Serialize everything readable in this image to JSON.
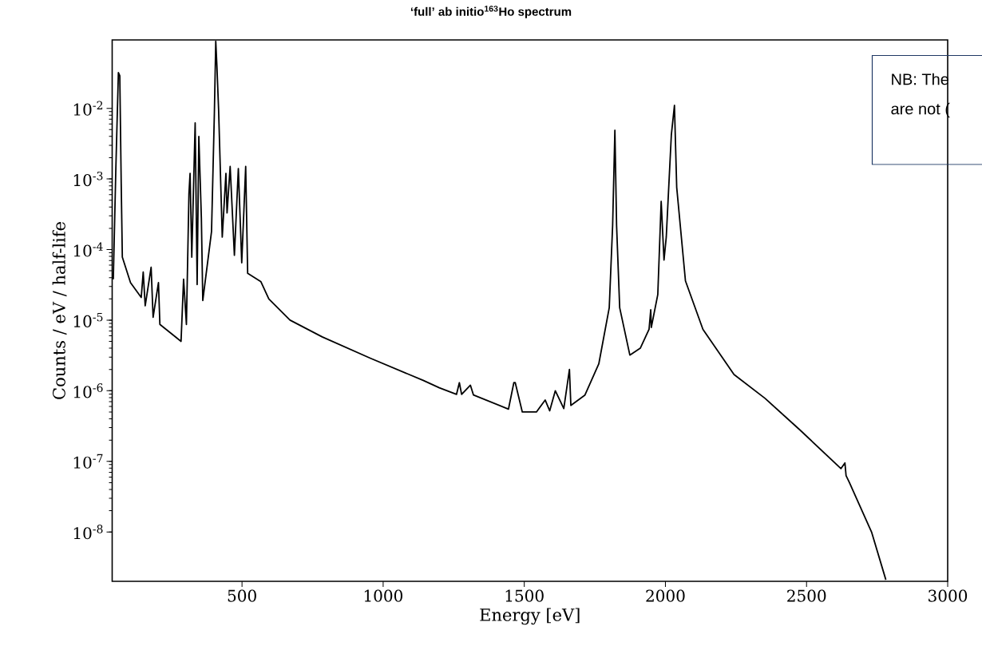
{
  "chart_data": {
    "type": "line",
    "title": "‘full’ ab initio$^{163}$Ho spectrum",
    "xlabel": "Energy [eV]",
    "ylabel": "Counts / eV / half-life",
    "annotations": [
      "NB: The",
      "are not ("
    ],
    "log": "y",
    "xlim": [
      40,
      3000
    ],
    "ylim": [
      2e-09,
      0.093
    ],
    "xticks": [
      500,
      1000,
      1500,
      2000,
      2500,
      3000
    ],
    "yticks": [
      {
        "value": 1e-08,
        "label": "10$^{-8}$"
      },
      {
        "value": 1e-07,
        "label": "10$^{-7}$"
      },
      {
        "value": 1e-06,
        "label": "10$^{-6}$"
      },
      {
        "value": 1e-05,
        "label": "10$^{-5}$"
      },
      {
        "value": 0.0001,
        "label": "10$^{-4}$"
      },
      {
        "value": 0.001,
        "label": "10$^{-3}$"
      },
      {
        "value": 0.01,
        "label": "10$^{-2}$"
      }
    ],
    "series": [
      {
        "color": "#000000",
        "x": [
          44,
          53,
          62,
          67,
          72,
          76,
          105,
          143,
          150,
          157,
          178,
          185,
          204,
          209,
          284,
          293,
          303,
          312,
          316,
          322,
          334,
          341,
          347,
          356,
          361,
          392,
          402,
          407,
          411,
          417,
          430,
          443,
          447,
          458,
          473,
          487,
          499,
          513,
          520,
          567,
          595,
          670,
          784,
          954,
          1142,
          1199,
          1260,
          1270,
          1278,
          1309,
          1320,
          1444,
          1463,
          1468,
          1493,
          1543,
          1574,
          1590,
          1610,
          1640,
          1660,
          1665,
          1715,
          1764,
          1801,
          1813,
          1821,
          1827,
          1838,
          1874,
          1911,
          1942,
          1948,
          1950,
          1973,
          1985,
          1995,
          2003,
          2021,
          2032,
          2040,
          2071,
          2133,
          2243,
          2353,
          2476,
          2622,
          2636,
          2640,
          2651,
          2731,
          2781
        ],
        "values": [
          3.8e-05,
          0.0014,
          0.032,
          0.029,
          0.00087,
          7.8e-05,
          3.4e-05,
          2.1e-05,
          4.8e-05,
          1.6e-05,
          5.6e-05,
          1.1e-05,
          3.4e-05,
          8.7e-06,
          5e-06,
          3.8e-05,
          8.7e-06,
          0.00062,
          0.0012,
          7.8e-05,
          0.0062,
          3.2e-05,
          0.004,
          0.00028,
          1.9e-05,
          0.00018,
          0.0083,
          0.089,
          0.04,
          0.0098,
          0.00015,
          0.0012,
          0.00033,
          0.0015,
          8.3e-05,
          0.0014,
          6.5e-05,
          0.0015,
          4.6e-05,
          3.5e-05,
          2e-05,
          1e-05,
          5.8e-06,
          2.9e-06,
          1.4e-06,
          1.1e-06,
          8.9e-07,
          1.3e-06,
          8.9e-07,
          1.2e-06,
          8.7e-07,
          5.5e-07,
          1.3e-06,
          1.3e-06,
          5e-07,
          5e-07,
          7.4e-07,
          5.2e-07,
          1e-06,
          5.6e-07,
          2e-06,
          6.2e-07,
          8.7e-07,
          2.4e-06,
          1.5e-05,
          0.00022,
          0.0049,
          0.00022,
          1.5e-05,
          3.2e-06,
          4e-06,
          7.4e-06,
          1.4e-05,
          7.9e-06,
          2.3e-05,
          0.00048,
          7.1e-05,
          0.00015,
          0.0042,
          0.011,
          0.00076,
          3.6e-05,
          7.4e-06,
          1.7e-06,
          7.8e-07,
          2.8e-07,
          7.9e-08,
          9.5e-08,
          6.3e-08,
          5.1e-08,
          9.8e-09,
          2.1e-09
        ]
      }
    ]
  }
}
